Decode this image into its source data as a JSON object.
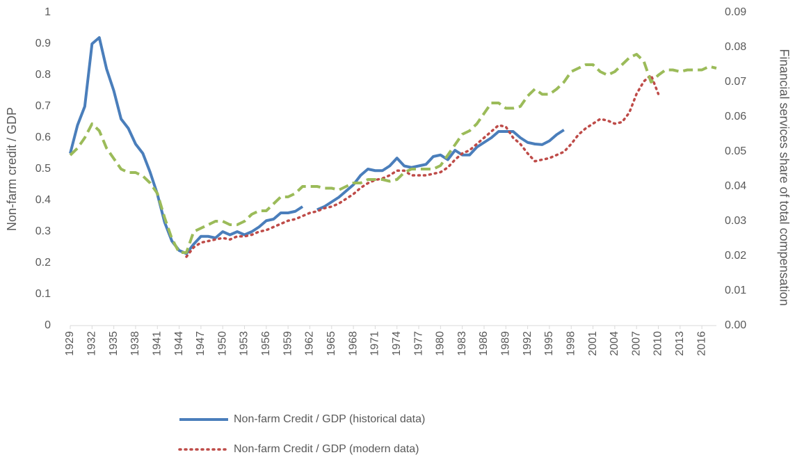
{
  "chart_data": {
    "type": "line",
    "y_label": "Non-farm credit / GDP",
    "y2_label": "Financial services share of total compensation",
    "x": [
      1929,
      1930,
      1931,
      1932,
      1933,
      1934,
      1935,
      1936,
      1937,
      1938,
      1939,
      1940,
      1941,
      1942,
      1943,
      1944,
      1945,
      1946,
      1947,
      1948,
      1949,
      1950,
      1951,
      1952,
      1953,
      1954,
      1955,
      1956,
      1957,
      1958,
      1959,
      1960,
      1961,
      1962,
      1963,
      1964,
      1965,
      1966,
      1967,
      1968,
      1969,
      1970,
      1971,
      1972,
      1973,
      1974,
      1975,
      1976,
      1977,
      1978,
      1979,
      1980,
      1981,
      1982,
      1983,
      1984,
      1985,
      1986,
      1987,
      1988,
      1989,
      1990,
      1991,
      1992,
      1993,
      1994,
      1995,
      1996,
      1997,
      1998,
      1999,
      2000,
      2001,
      2002,
      2003,
      2004,
      2005,
      2006,
      2007,
      2008,
      2009,
      2010,
      2011,
      2012,
      2013,
      2014,
      2015,
      2016,
      2017,
      2018
    ],
    "xlim": [
      1929,
      2018
    ],
    "xticks": [
      1929,
      1932,
      1935,
      1938,
      1941,
      1944,
      1947,
      1950,
      1953,
      1956,
      1959,
      1962,
      1965,
      1968,
      1971,
      1974,
      1977,
      1980,
      1983,
      1986,
      1989,
      1992,
      1995,
      1998,
      2001,
      2004,
      2007,
      2010,
      2013,
      2016
    ],
    "ylim": [
      0,
      1
    ],
    "yticks": [
      0,
      0.1,
      0.2,
      0.3,
      0.4,
      0.5,
      0.6,
      0.7,
      0.8,
      0.9,
      1
    ],
    "y2lim": [
      0,
      0.09
    ],
    "y2ticks": [
      {
        "value": 0,
        "label": "0.00"
      },
      {
        "value": 0.01,
        "label": "0.01"
      },
      {
        "value": 0.02,
        "label": "0.02"
      },
      {
        "value": 0.03,
        "label": "0.03"
      },
      {
        "value": 0.04,
        "label": "0.04"
      },
      {
        "value": 0.05,
        "label": "0.05"
      },
      {
        "value": 0.06,
        "label": "0.06"
      },
      {
        "value": 0.07,
        "label": "0.07"
      },
      {
        "value": 0.08,
        "label": "0.08"
      },
      {
        "value": 0.09,
        "label": "0.09"
      }
    ],
    "legend": "bottom",
    "series": [
      {
        "name": "Non-farm Credit / GDP (historical data)",
        "color": "#4a7ebb",
        "dash": "solid",
        "values": [
          0.55,
          0.64,
          0.7,
          0.9,
          0.92,
          0.82,
          0.75,
          0.66,
          0.63,
          0.58,
          0.55,
          0.49,
          0.42,
          0.33,
          0.27,
          0.24,
          0.23,
          0.26,
          0.285,
          0.285,
          0.28,
          0.3,
          0.29,
          0.3,
          0.29,
          0.3,
          0.315,
          0.335,
          0.34,
          0.36,
          0.36,
          0.365,
          0.38,
          null,
          0.37,
          0.38,
          0.395,
          0.41,
          0.43,
          0.45,
          0.48,
          0.5,
          0.495,
          0.495,
          0.51,
          0.535,
          0.51,
          0.505,
          0.51,
          0.515,
          0.54,
          0.545,
          0.53,
          0.56,
          0.545,
          0.545,
          0.57,
          0.585,
          0.6,
          0.62,
          0.62,
          0.62,
          0.6,
          0.585,
          0.58,
          0.578,
          0.59,
          0.61,
          0.625,
          null,
          null,
          null,
          null,
          null,
          null,
          null,
          null,
          null,
          null,
          null,
          null,
          null,
          null,
          null,
          null,
          null,
          null,
          null,
          null,
          null
        ]
      },
      {
        "name": "Non-farm Credit / GDP (modern data)",
        "color": "#be4b48",
        "dash": "dotted",
        "values": [
          null,
          null,
          null,
          null,
          null,
          null,
          null,
          null,
          null,
          null,
          null,
          null,
          null,
          null,
          null,
          null,
          0.22,
          0.25,
          0.265,
          0.27,
          0.275,
          0.28,
          0.275,
          0.285,
          0.285,
          0.29,
          0.3,
          0.305,
          0.315,
          0.325,
          0.335,
          0.34,
          0.35,
          0.36,
          0.365,
          0.375,
          0.38,
          0.39,
          0.405,
          0.42,
          0.44,
          0.455,
          0.465,
          0.47,
          0.48,
          0.495,
          0.495,
          0.48,
          0.48,
          0.48,
          0.485,
          0.49,
          0.505,
          0.53,
          0.55,
          0.56,
          0.58,
          0.6,
          0.62,
          0.64,
          0.635,
          0.6,
          0.58,
          0.55,
          0.525,
          0.53,
          0.535,
          0.545,
          0.555,
          0.58,
          0.61,
          0.63,
          0.645,
          0.66,
          0.655,
          0.645,
          0.65,
          0.68,
          0.74,
          0.78,
          0.8,
          0.74,
          null,
          null,
          null,
          null,
          null,
          null,
          null,
          null
        ]
      },
      {
        "name": "Financial services share of total compensation 1929-2018",
        "color": "#9bbb59",
        "dash": "dashed",
        "axis": "y2",
        "values": [
          0.049,
          0.051,
          0.054,
          0.058,
          0.056,
          0.051,
          0.048,
          0.045,
          0.044,
          0.044,
          0.043,
          0.041,
          0.038,
          0.031,
          0.025,
          0.021,
          0.021,
          0.027,
          0.028,
          0.029,
          0.03,
          0.03,
          0.029,
          0.029,
          0.03,
          0.032,
          0.033,
          0.033,
          0.035,
          0.037,
          0.037,
          0.038,
          0.04,
          0.04,
          0.04,
          0.0395,
          0.0395,
          0.039,
          0.04,
          0.041,
          0.041,
          0.042,
          0.042,
          0.042,
          0.0415,
          0.042,
          0.044,
          0.045,
          0.045,
          0.045,
          0.045,
          0.046,
          0.049,
          0.052,
          0.055,
          0.056,
          0.058,
          0.061,
          0.064,
          0.064,
          0.0625,
          0.0625,
          0.063,
          0.066,
          0.068,
          0.0665,
          0.0665,
          0.068,
          0.07,
          0.073,
          0.074,
          0.075,
          0.075,
          0.073,
          0.072,
          0.073,
          0.075,
          0.077,
          0.078,
          0.076,
          0.07,
          0.072,
          0.0735,
          0.0735,
          0.073,
          0.0735,
          0.0735,
          0.0735,
          0.0745,
          0.074
        ]
      }
    ]
  }
}
